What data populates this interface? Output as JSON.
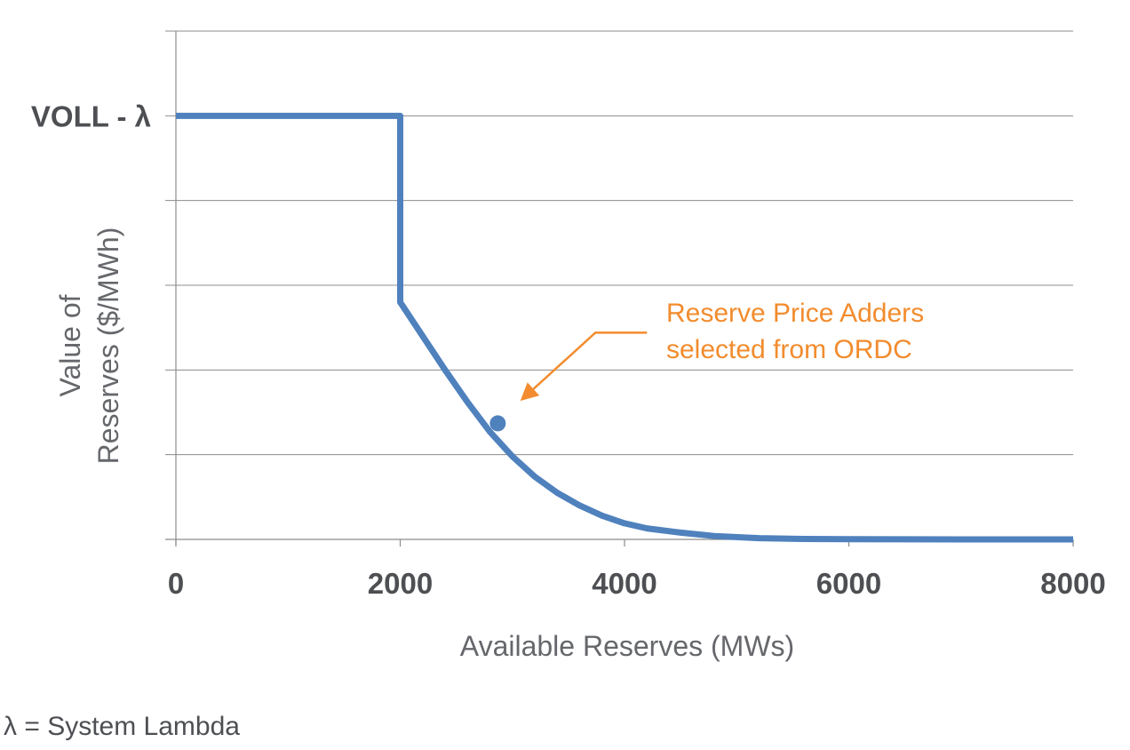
{
  "chart_data": {
    "type": "line",
    "title": "",
    "xlabel": "Available Reserves (MWs)",
    "ylabel_lines": [
      "Value of",
      "Reserves ($/MWh)"
    ],
    "xlim": [
      0,
      8000
    ],
    "ylim": [
      0,
      6
    ],
    "x_ticks": [
      0,
      2000,
      4000,
      6000,
      8000
    ],
    "x_tick_labels": [
      "0",
      "2000",
      "4000",
      "6000",
      "8000"
    ],
    "y_grid": [
      1,
      2,
      3,
      4,
      5,
      6
    ],
    "y_tick_labels": [
      {
        "value": 5,
        "label": "VOLL - λ"
      }
    ],
    "grid": true,
    "colors": {
      "series": "#4f81bd",
      "annotation": "#f28c2e",
      "grid": "#8c8c8c"
    },
    "series": [
      {
        "x": [
          0,
          2000,
          2000,
          2200,
          2400,
          2600,
          2800,
          3000,
          3200,
          3400,
          3600,
          3800,
          4000,
          4200,
          4500,
          4800,
          5200,
          5600,
          6000,
          6500,
          7000,
          7500,
          8000
        ],
        "y": [
          5,
          5,
          2.8,
          2.4,
          2.0,
          1.62,
          1.27,
          0.98,
          0.74,
          0.55,
          0.4,
          0.28,
          0.19,
          0.13,
          0.08,
          0.04,
          0.015,
          0.005,
          0.002,
          0.001,
          0.0,
          0.0,
          0.0
        ]
      }
    ],
    "highlight_point": {
      "x": 2870,
      "y": 1.37
    },
    "annotation": {
      "lines": [
        "Reserve Price Adders",
        "selected from ORDC"
      ],
      "arrow_from": {
        "x": 4200,
        "y": 2.44
      },
      "arrow_to": {
        "x": 3100,
        "y": 1.67
      }
    }
  },
  "footnote": "λ = System Lambda"
}
